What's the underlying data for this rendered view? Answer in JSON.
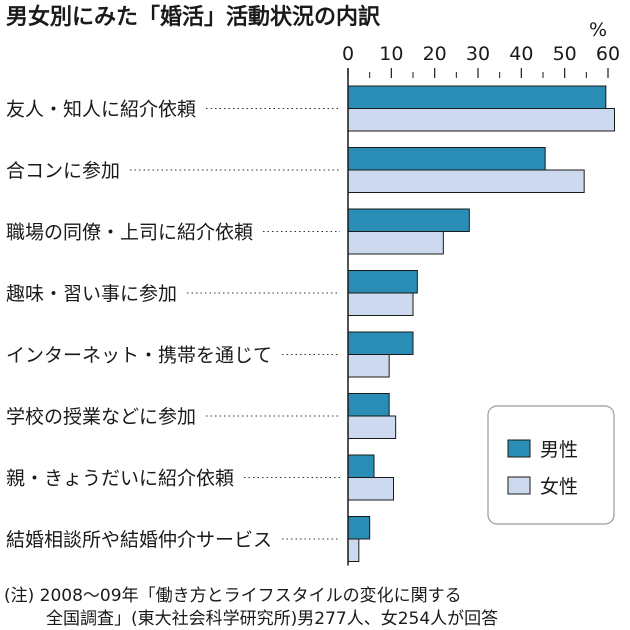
{
  "title": "男女別にみた「婚活」活動状況の内訳",
  "unit": "%",
  "note_lines": [
    "(注) 2008～09年「働き方とライフスタイルの変化に関する",
    "全国調査」(東大社会科学研究所)男277人、女254人が回答"
  ],
  "legend": [
    {
      "label": "男性",
      "color": "#2a8db5"
    },
    {
      "label": "女性",
      "color": "#cdd9ee"
    }
  ],
  "chart_data": {
    "type": "bar",
    "orientation": "horizontal",
    "title": "男女別にみた「婚活」活動状況の内訳",
    "xlabel": "%",
    "xlim": [
      0,
      60
    ],
    "ticks": [
      0,
      10,
      20,
      30,
      40,
      50,
      60
    ],
    "categories": [
      "友人・知人に紹介依頼",
      "合コンに参加",
      "職場の同僚・上司に紹介依頼",
      "趣味・習い事に参加",
      "インターネット・携帯を通じて",
      "学校の授業などに参加",
      "親・きょうだいに紹介依頼",
      "結婚相談所や結婚仲介サービス"
    ],
    "series": [
      {
        "name": "男性",
        "color": "#2a8db5",
        "values": [
          59.5,
          45.5,
          28,
          16,
          15,
          9.5,
          6,
          5
        ]
      },
      {
        "name": "女性",
        "color": "#cdd9ee",
        "values": [
          61.5,
          54.5,
          22,
          15,
          9.5,
          11,
          10.5,
          2.5
        ]
      }
    ],
    "legend_position": "bottom-right",
    "grid": false
  }
}
